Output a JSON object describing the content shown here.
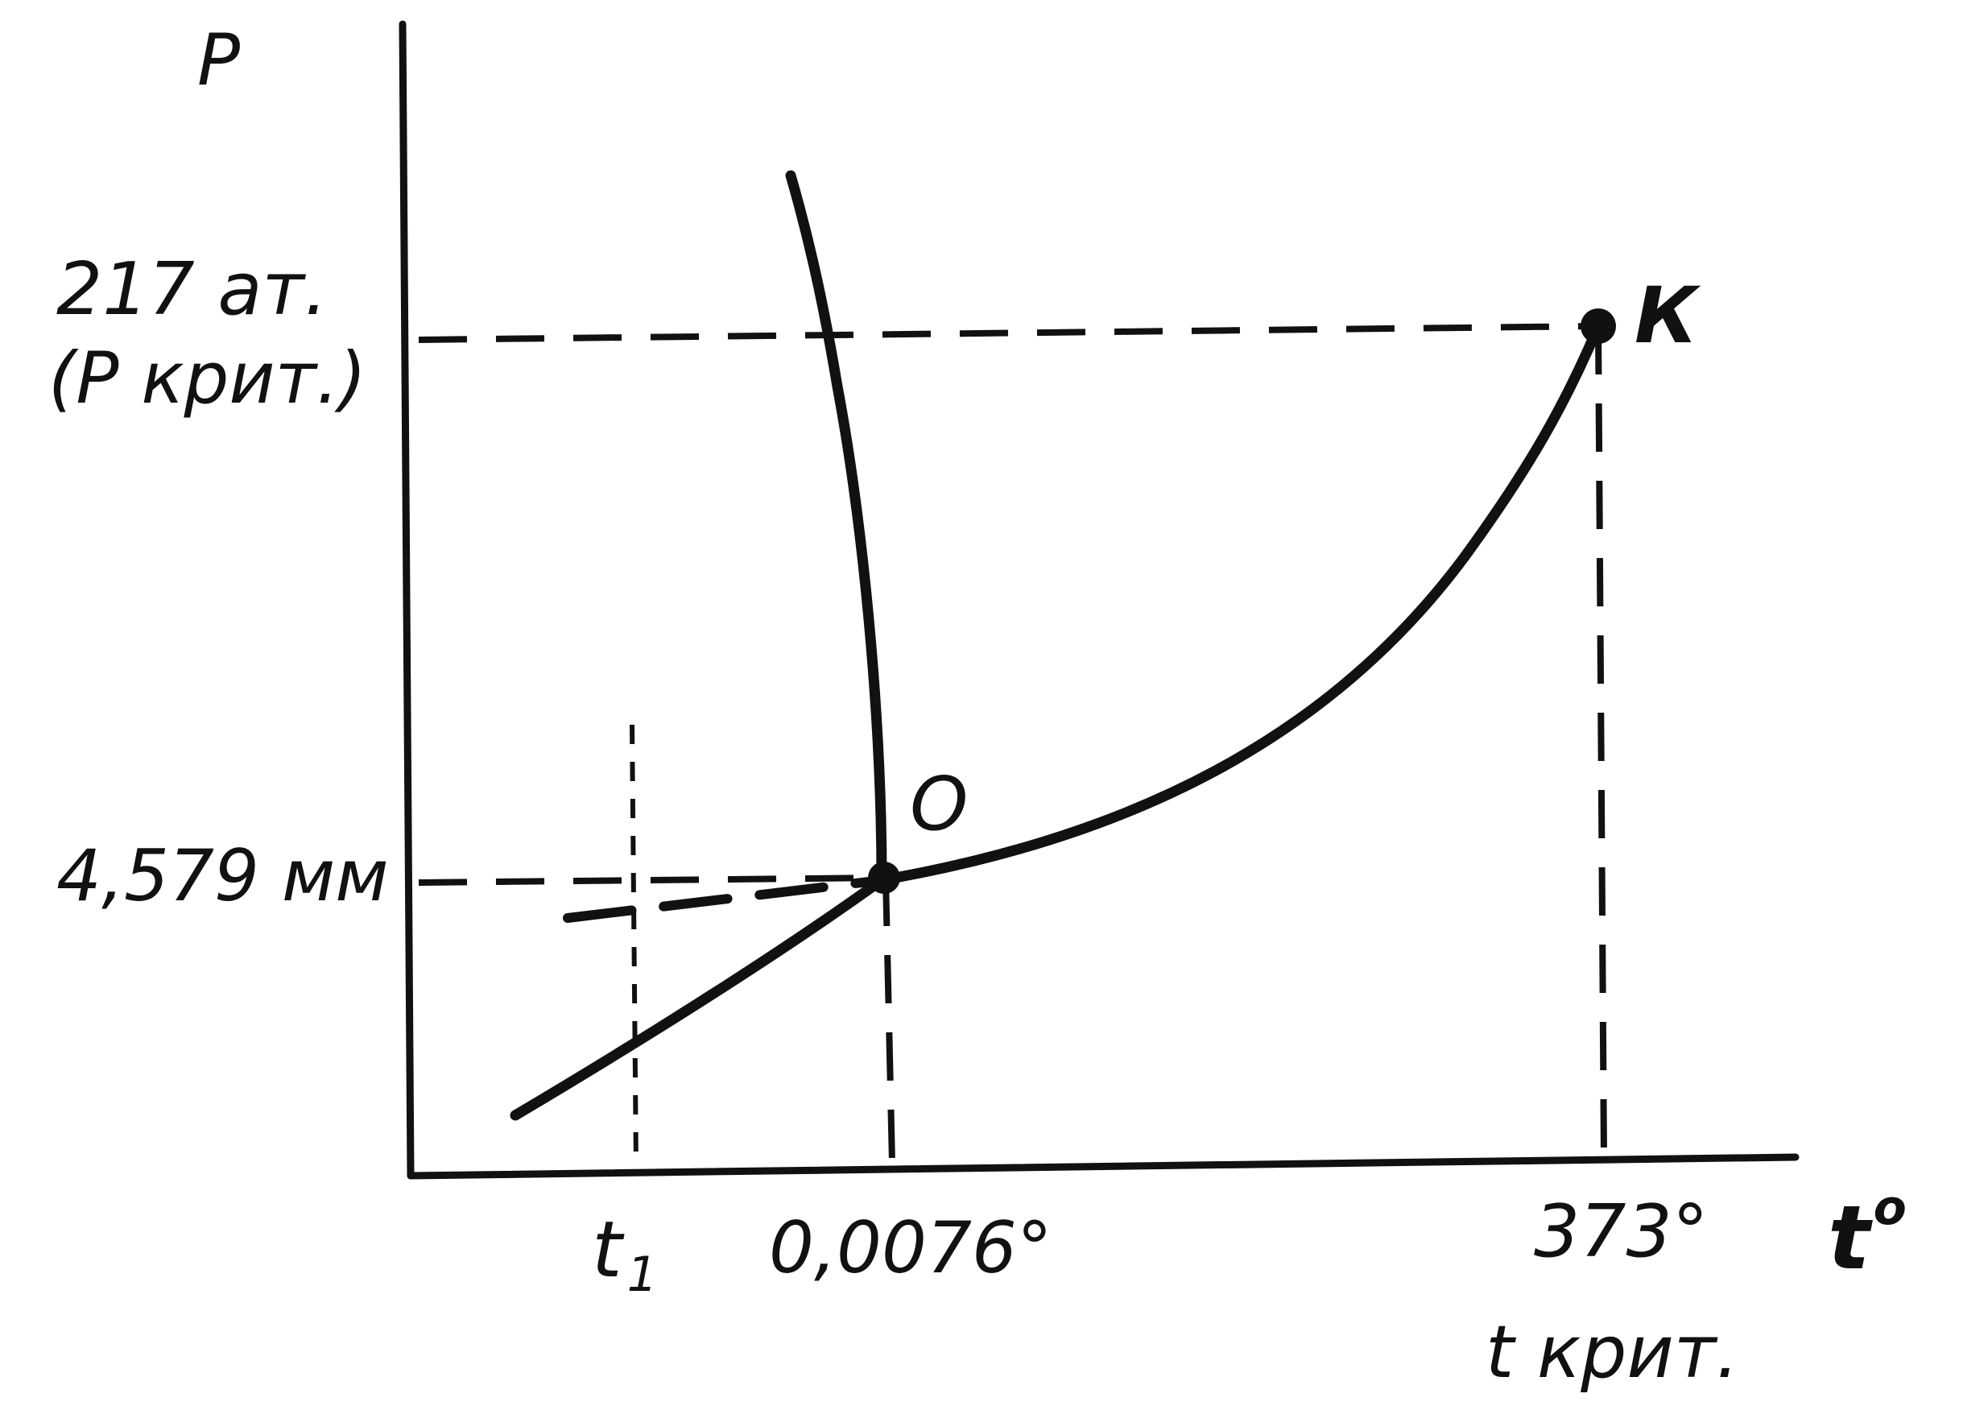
{
  "labels": {
    "p_axis": "P",
    "t_axis": "t",
    "t_axis_superscript": "o",
    "p_crit_value": "217 ат.",
    "p_crit_note": "(Р крит.)",
    "p_triple_value": "4,579 мм",
    "t1": "t",
    "t1_subscript": "1",
    "t_triple_value": "0,0076°",
    "t_crit_value": "373°",
    "t_crit_note": "t крит.",
    "point_triple": "O",
    "point_critical": "К"
  },
  "colors": {
    "ink": "#111111",
    "paper": "#ffffff"
  }
}
